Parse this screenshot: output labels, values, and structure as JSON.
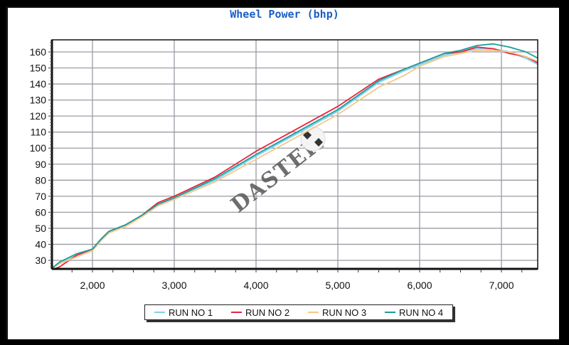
{
  "title": "Wheel Power (bhp)",
  "watermark": "DASTEK",
  "legend": {
    "items": [
      {
        "label": "RUN NO 1",
        "color": "#7fd0f0"
      },
      {
        "label": "RUN NO 2",
        "color": "#e8243c"
      },
      {
        "label": "RUN NO 3",
        "color": "#f5c78a"
      },
      {
        "label": "RUN NO 4",
        "color": "#1a9e9a"
      }
    ]
  },
  "chart_data": {
    "type": "line",
    "title": "Wheel Power (bhp)",
    "xlabel": "",
    "ylabel": "",
    "xlim": [
      1500,
      7450
    ],
    "ylim": [
      25,
      167
    ],
    "grid": true,
    "legend_position": "bottom",
    "x_ticks": [
      "2,000",
      "3,000",
      "4,000",
      "5,000",
      "6,000",
      "7,000"
    ],
    "y_ticks": [
      "30",
      "40",
      "50",
      "60",
      "70",
      "80",
      "90",
      "100",
      "110",
      "120",
      "130",
      "140",
      "150",
      "160"
    ],
    "x": [
      1500,
      1600,
      1800,
      2000,
      2100,
      2200,
      2400,
      2600,
      2800,
      3000,
      3500,
      4000,
      4500,
      5000,
      5500,
      5800,
      6000,
      6300,
      6500,
      6700,
      6900,
      7100,
      7300,
      7450
    ],
    "series": [
      {
        "name": "RUN NO 1",
        "color": "#7fd0f0",
        "values": [
          25,
          28,
          33,
          37,
          43,
          48,
          52,
          58,
          65,
          69,
          80,
          95,
          109,
          123,
          141,
          148,
          152,
          158,
          160,
          162,
          162,
          160,
          156,
          152
        ]
      },
      {
        "name": "RUN NO 2",
        "color": "#e8243c",
        "values": [
          24,
          26,
          33,
          37,
          43,
          48,
          52,
          58,
          66,
          70,
          82,
          98,
          112,
          126,
          143,
          149,
          153,
          159,
          160,
          163,
          162,
          159,
          157,
          153
        ]
      },
      {
        "name": "RUN NO 3",
        "color": "#f5c78a",
        "values": [
          25,
          28,
          32,
          36,
          42,
          47,
          51,
          57,
          64,
          68,
          79,
          93,
          107,
          121,
          138,
          145,
          151,
          157,
          159,
          161,
          161,
          160,
          157,
          154
        ]
      },
      {
        "name": "RUN NO 4",
        "color": "#1a9e9a",
        "values": [
          25,
          29,
          34,
          37,
          43,
          48,
          52,
          58,
          65,
          69,
          81,
          96,
          110,
          124,
          142,
          149,
          153,
          159,
          161,
          164,
          165,
          163,
          160,
          156
        ]
      }
    ]
  }
}
